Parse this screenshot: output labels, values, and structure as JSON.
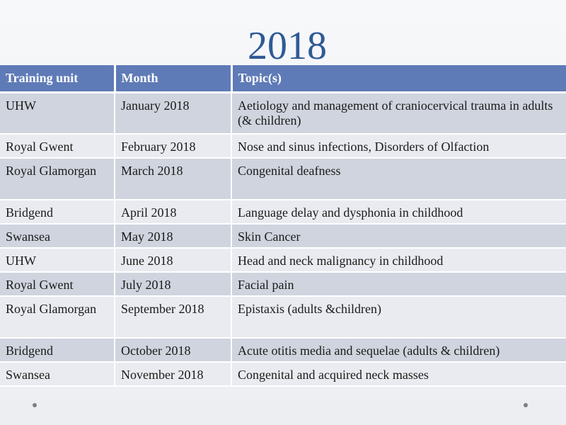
{
  "title": "2018",
  "table": {
    "headers": [
      "Training unit",
      "Month",
      "Topic(s)"
    ],
    "rows": [
      {
        "unit": "UHW",
        "month": "January 2018",
        "topic": "Aetiology and management of craniocervical trauma in adults (& children)"
      },
      {
        "unit": "Royal Gwent",
        "month": "February 2018",
        "topic": "Nose and sinus infections, Disorders of Olfaction"
      },
      {
        "unit": "Royal Glamorgan",
        "month": "March 2018",
        "topic": "Congenital deafness"
      },
      {
        "unit": "Bridgend",
        "month": "April 2018",
        "topic": "Language delay and dysphonia in childhood"
      },
      {
        "unit": "Swansea",
        "month": "May 2018",
        "topic": "Skin Cancer"
      },
      {
        "unit": "UHW",
        "month": "June 2018",
        "topic": "Head and neck malignancy in childhood"
      },
      {
        "unit": "Royal Gwent",
        "month": "July 2018",
        "topic": "Facial pain"
      },
      {
        "unit": "Royal Glamorgan",
        "month": "September 2018",
        "topic": "Epistaxis (adults &children)"
      },
      {
        "unit": "Bridgend",
        "month": "October 2018",
        "topic": "Acute otitis media and sequelae (adults & children)"
      },
      {
        "unit": "Swansea",
        "month": "November 2018",
        "topic": "Congenital and acquired neck masses"
      }
    ]
  },
  "colors": {
    "title": "#2f5a96",
    "header_bg": "#5f7bb7",
    "row_odd": "#cfd4de",
    "row_even": "#e9ebf0"
  }
}
